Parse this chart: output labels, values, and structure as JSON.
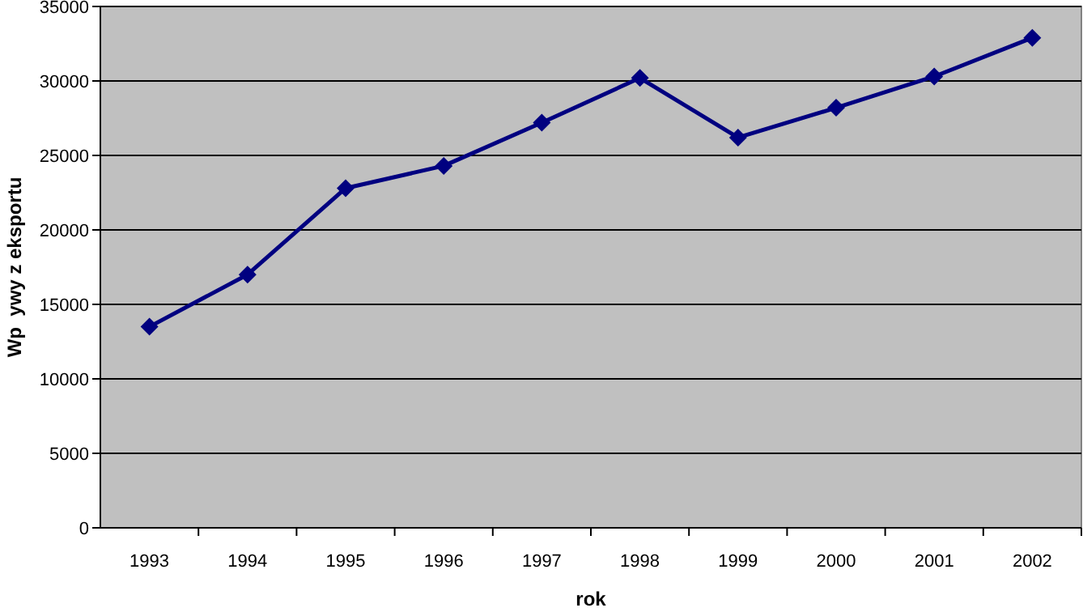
{
  "chart_data": {
    "type": "line",
    "xlabel": "rok",
    "ylabel": "Wp  ywy z eksportu",
    "categories": [
      "1993",
      "1994",
      "1995",
      "1996",
      "1997",
      "1998",
      "1999",
      "2000",
      "2001",
      "2002"
    ],
    "series": [
      {
        "color": "#000080",
        "values": [
          13500,
          17000,
          22800,
          24300,
          27200,
          30200,
          26200,
          28200,
          30300,
          32900
        ]
      }
    ],
    "ylim": [
      0,
      35000
    ],
    "yticks": [
      0,
      5000,
      10000,
      15000,
      20000,
      25000,
      30000,
      35000
    ],
    "grid": "y",
    "marker": "diamond",
    "line_style": "solid"
  }
}
